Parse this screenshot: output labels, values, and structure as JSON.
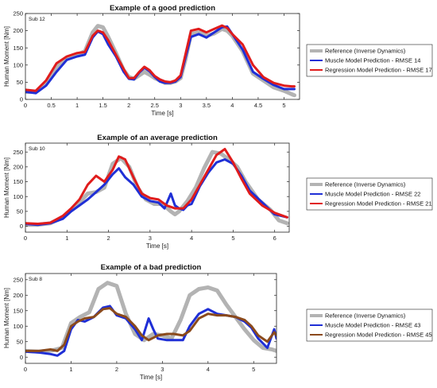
{
  "chart_data": [
    {
      "type": "line",
      "title": "Example of a good prediction",
      "subject_label": "Sub 12",
      "xlabel": "Time [s]",
      "ylabel": "Human Moment [Nm]",
      "xlim": [
        0,
        5.3
      ],
      "ylim": [
        0,
        250
      ],
      "xticks": [
        0,
        0.5,
        1,
        1.5,
        2,
        2.5,
        3,
        3.5,
        4,
        4.5,
        5
      ],
      "xtick_labels": [
        "0",
        "0.5",
        "1",
        "1.5",
        "2",
        "2.5",
        "3",
        "3.5",
        "4",
        "4.5",
        "5"
      ],
      "yticks": [
        0,
        50,
        100,
        150,
        200,
        250
      ],
      "ytick_labels": [
        "0",
        "50",
        "100",
        "150",
        "200",
        "250"
      ],
      "grid": false,
      "legend_position": "right",
      "series": [
        {
          "name": "Reference (Inverse Dynamics)",
          "color": "#b3b3b3",
          "x": [
            0,
            0.2,
            0.4,
            0.6,
            0.8,
            1.0,
            1.15,
            1.3,
            1.4,
            1.5,
            1.6,
            1.75,
            1.9,
            2.0,
            2.1,
            2.2,
            2.3,
            2.4,
            2.5,
            2.6,
            2.7,
            2.8,
            2.9,
            3.0,
            3.1,
            3.2,
            3.35,
            3.5,
            3.65,
            3.8,
            3.9,
            4.0,
            4.2,
            4.4,
            4.6,
            4.8,
            5.0,
            5.15,
            5.2
          ],
          "y": [
            22,
            22,
            48,
            95,
            118,
            130,
            140,
            195,
            214,
            210,
            182,
            135,
            85,
            65,
            60,
            70,
            80,
            72,
            62,
            55,
            48,
            48,
            52,
            62,
            120,
            190,
            195,
            185,
            192,
            205,
            200,
            185,
            140,
            75,
            55,
            35,
            25,
            15,
            12
          ]
        },
        {
          "name": "Muscle Model Prediction - RMSE 14",
          "color": "#1f2fd6",
          "x": [
            0,
            0.2,
            0.4,
            0.6,
            0.8,
            1.0,
            1.15,
            1.3,
            1.4,
            1.5,
            1.6,
            1.75,
            1.9,
            2.0,
            2.1,
            2.2,
            2.3,
            2.4,
            2.5,
            2.6,
            2.7,
            2.8,
            2.9,
            3.0,
            3.1,
            3.2,
            3.35,
            3.5,
            3.65,
            3.8,
            3.9,
            4.0,
            4.2,
            4.4,
            4.6,
            4.8,
            5.0,
            5.15,
            5.2
          ],
          "y": [
            22,
            18,
            40,
            80,
            115,
            125,
            130,
            180,
            198,
            190,
            160,
            125,
            80,
            60,
            58,
            78,
            92,
            82,
            65,
            52,
            48,
            48,
            52,
            65,
            125,
            182,
            190,
            180,
            195,
            210,
            212,
            190,
            145,
            80,
            60,
            42,
            30,
            30,
            30
          ]
        },
        {
          "name": "Regression Model Prediction - RMSE 17",
          "color": "#e01c1c",
          "x": [
            0,
            0.2,
            0.4,
            0.6,
            0.8,
            1.0,
            1.15,
            1.3,
            1.4,
            1.5,
            1.6,
            1.75,
            1.9,
            2.0,
            2.1,
            2.2,
            2.3,
            2.4,
            2.5,
            2.6,
            2.7,
            2.8,
            2.9,
            3.0,
            3.1,
            3.2,
            3.35,
            3.5,
            3.65,
            3.8,
            3.9,
            4.0,
            4.2,
            4.4,
            4.6,
            4.8,
            5.0,
            5.15,
            5.2
          ],
          "y": [
            28,
            25,
            55,
            105,
            125,
            135,
            138,
            185,
            200,
            195,
            172,
            130,
            88,
            62,
            62,
            80,
            95,
            85,
            68,
            58,
            52,
            50,
            55,
            70,
            135,
            200,
            205,
            195,
            205,
            215,
            208,
            190,
            160,
            100,
            65,
            48,
            40,
            38,
            38
          ]
        }
      ]
    },
    {
      "type": "line",
      "title": "Example of an average prediction",
      "subject_label": "Sub 10",
      "xlabel": "Time [s]",
      "ylabel": "Human Moment [Nm]",
      "xlim": [
        0,
        6.35
      ],
      "ylim": [
        -20,
        280
      ],
      "xticks": [
        0,
        1,
        2,
        3,
        4,
        5,
        6
      ],
      "xtick_labels": [
        "0",
        "1",
        "2",
        "3",
        "4",
        "5",
        "6"
      ],
      "yticks": [
        0,
        50,
        100,
        150,
        200,
        250
      ],
      "ytick_labels": [
        "0",
        "50",
        "100",
        "150",
        "200",
        "250"
      ],
      "grid": false,
      "legend_position": "right",
      "series": [
        {
          "name": "Reference (Inverse Dynamics)",
          "color": "#b3b3b3",
          "x": [
            0,
            0.3,
            0.6,
            0.9,
            1.1,
            1.3,
            1.5,
            1.7,
            1.9,
            2.1,
            2.3,
            2.5,
            2.7,
            2.9,
            3.1,
            3.3,
            3.5,
            3.6,
            3.7,
            3.9,
            4.1,
            4.3,
            4.5,
            4.7,
            4.9,
            5.1,
            5.3,
            5.6,
            5.9,
            6.1,
            6.3
          ],
          "y": [
            5,
            5,
            10,
            30,
            55,
            80,
            110,
            115,
            130,
            210,
            230,
            200,
            130,
            90,
            75,
            75,
            50,
            40,
            50,
            85,
            130,
            195,
            250,
            245,
            225,
            200,
            150,
            90,
            55,
            20,
            10
          ]
        },
        {
          "name": "Muscle Model Prediction - RMSE 22",
          "color": "#1f2fd6",
          "x": [
            0,
            0.3,
            0.6,
            0.9,
            1.1,
            1.3,
            1.5,
            1.7,
            1.9,
            2.1,
            2.25,
            2.4,
            2.6,
            2.8,
            3.0,
            3.2,
            3.35,
            3.5,
            3.6,
            3.7,
            3.8,
            3.9,
            4.0,
            4.2,
            4.4,
            4.6,
            4.8,
            5.0,
            5.2,
            5.4,
            5.7,
            6.0,
            6.3
          ],
          "y": [
            8,
            5,
            10,
            25,
            50,
            70,
            90,
            115,
            140,
            175,
            195,
            165,
            140,
            100,
            85,
            80,
            60,
            110,
            70,
            60,
            55,
            70,
            75,
            135,
            180,
            215,
            225,
            210,
            170,
            120,
            80,
            40,
            30
          ]
        },
        {
          "name": "Regression Model Prediction - RMSE 21",
          "color": "#e01c1c",
          "x": [
            0,
            0.3,
            0.6,
            0.9,
            1.1,
            1.3,
            1.5,
            1.7,
            1.9,
            2.1,
            2.25,
            2.4,
            2.6,
            2.8,
            3.0,
            3.2,
            3.4,
            3.6,
            3.8,
            4.0,
            4.2,
            4.4,
            4.6,
            4.8,
            5.0,
            5.2,
            5.4,
            5.7,
            6.0,
            6.3
          ],
          "y": [
            10,
            8,
            12,
            35,
            60,
            90,
            140,
            170,
            150,
            190,
            235,
            225,
            165,
            110,
            95,
            90,
            70,
            60,
            60,
            90,
            140,
            190,
            240,
            260,
            215,
            160,
            110,
            70,
            45,
            30
          ]
        }
      ]
    },
    {
      "type": "line",
      "title": "Example of a bad prediction",
      "subject_label": "Sub 8",
      "xlabel": "Time [s]",
      "ylabel": "Human Moment [Nm]",
      "xlim": [
        0,
        5.5
      ],
      "ylim": [
        -20,
        270
      ],
      "xticks": [
        0,
        1,
        2,
        3,
        4,
        5
      ],
      "xtick_labels": [
        "0",
        "1",
        "2",
        "3",
        "4",
        "5"
      ],
      "yticks": [
        0,
        50,
        100,
        150,
        200,
        250
      ],
      "ytick_labels": [
        "0",
        "50",
        "100",
        "150",
        "200",
        "250"
      ],
      "grid": false,
      "legend_position": "right",
      "series": [
        {
          "name": "Reference (Inverse Dynamics)",
          "color": "#b3b3b3",
          "x": [
            0,
            0.3,
            0.6,
            0.8,
            1.0,
            1.2,
            1.4,
            1.6,
            1.8,
            2.0,
            2.2,
            2.4,
            2.6,
            2.8,
            3.0,
            3.2,
            3.4,
            3.6,
            3.8,
            4.0,
            4.2,
            4.4,
            4.6,
            4.8,
            5.0,
            5.2,
            5.4,
            5.5
          ],
          "y": [
            20,
            18,
            22,
            30,
            110,
            130,
            145,
            220,
            240,
            230,
            140,
            75,
            55,
            75,
            70,
            60,
            120,
            200,
            220,
            225,
            215,
            170,
            130,
            90,
            55,
            30,
            25,
            20
          ]
        },
        {
          "name": "Muscle Model Prediction - RMSE 43",
          "color": "#1f2fd6",
          "x": [
            0,
            0.3,
            0.55,
            0.7,
            0.85,
            1.0,
            1.15,
            1.3,
            1.5,
            1.7,
            1.85,
            2.0,
            2.2,
            2.4,
            2.55,
            2.7,
            2.8,
            2.9,
            3.1,
            3.25,
            3.45,
            3.6,
            3.8,
            4.0,
            4.2,
            4.4,
            4.6,
            4.8,
            4.95,
            5.1,
            5.3,
            5.45,
            5.5
          ],
          "y": [
            18,
            15,
            10,
            5,
            20,
            90,
            120,
            115,
            130,
            160,
            165,
            135,
            125,
            90,
            55,
            125,
            90,
            60,
            55,
            55,
            55,
            100,
            140,
            155,
            140,
            135,
            130,
            115,
            95,
            60,
            30,
            90,
            60
          ]
        },
        {
          "name": "Regression Model Prediction - RMSE 45",
          "color": "#8b4a1c",
          "x": [
            0,
            0.3,
            0.55,
            0.7,
            0.85,
            1.0,
            1.15,
            1.3,
            1.5,
            1.7,
            1.85,
            2.0,
            2.2,
            2.4,
            2.55,
            2.7,
            2.9,
            3.1,
            3.25,
            3.45,
            3.6,
            3.8,
            4.0,
            4.2,
            4.4,
            4.6,
            4.8,
            4.95,
            5.1,
            5.3,
            5.45,
            5.5
          ],
          "y": [
            20,
            20,
            25,
            20,
            40,
            100,
            115,
            125,
            130,
            155,
            158,
            140,
            130,
            100,
            70,
            55,
            70,
            75,
            75,
            70,
            85,
            125,
            140,
            135,
            135,
            130,
            120,
            100,
            70,
            50,
            80,
            70
          ]
        }
      ]
    }
  ]
}
